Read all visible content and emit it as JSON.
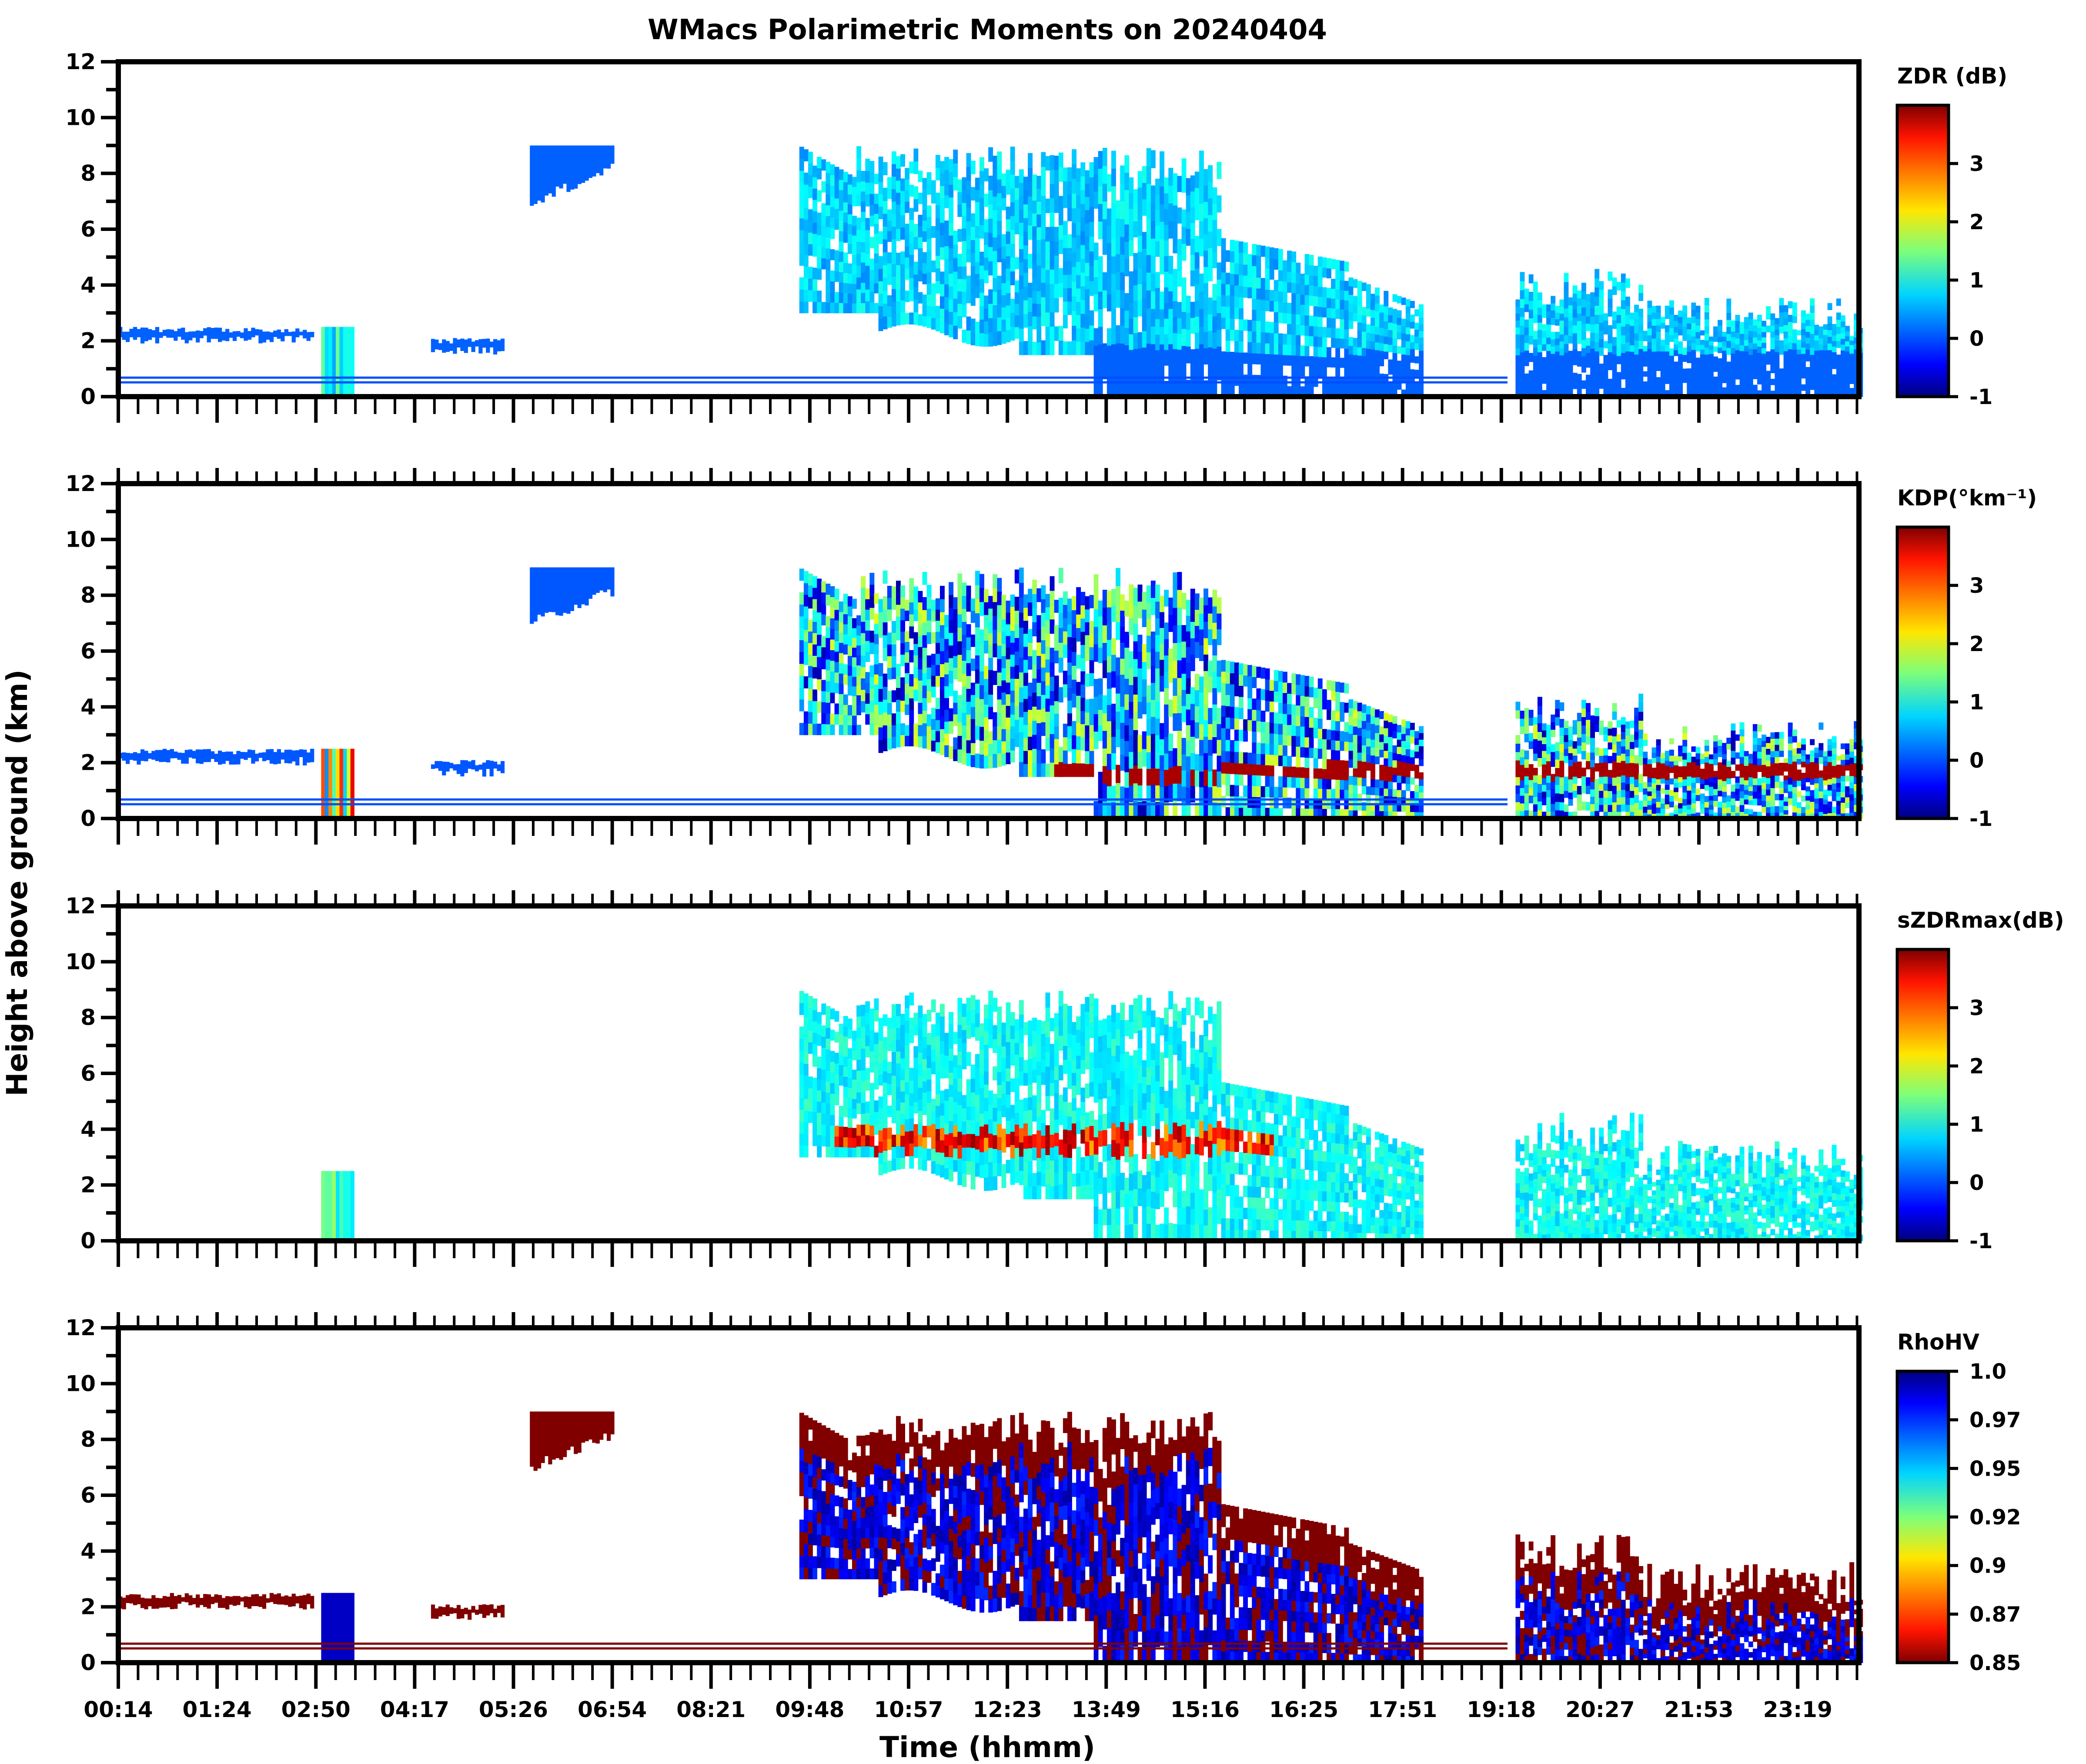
{
  "chart_data": {
    "type": "heatmap",
    "title": "WMacs Polarimetric Moments on 20240404",
    "xlabel": "Time (hhmm)",
    "ylabel": "Height above ground (km)",
    "x_tick_labels": [
      "00:14",
      "01:24",
      "02:50",
      "04:17",
      "05:26",
      "06:54",
      "08:21",
      "09:48",
      "10:57",
      "12:23",
      "13:49",
      "15:16",
      "16:25",
      "17:51",
      "19:18",
      "20:27",
      "21:53",
      "23:19"
    ],
    "y_tick_labels": [
      "0",
      "2",
      "4",
      "6",
      "8",
      "10",
      "12"
    ],
    "ylim": [
      0,
      12
    ],
    "xlim_hours": [
      0.23,
      24.0
    ],
    "grid": false,
    "panels": [
      {
        "name": "ZDR",
        "colorbar_label": "ZDR (dB)",
        "colormap": "jet",
        "clim": [
          -1,
          4
        ],
        "colorbar_ticks": [
          "3",
          "2",
          "1",
          "0",
          "-1"
        ],
        "colorbar_tick_values": [
          3,
          2,
          1,
          0,
          -1
        ],
        "description": "Mostly 0 to 0.5 dB (blue) echoes; high ZDR (2-4 dB) near 3.5 km around 10:30"
      },
      {
        "name": "KDP",
        "colorbar_label": "KDP(°km⁻¹)",
        "colormap": "jet",
        "clim": [
          -1,
          4
        ],
        "colorbar_ticks": [
          "3",
          "2",
          "1",
          "0",
          "-1"
        ],
        "colorbar_tick_values": [
          3,
          2,
          1,
          0,
          -1
        ],
        "description": "Noisy banded KDP with high values near melting layer (~1.7 km) after 19:18"
      },
      {
        "name": "sZDRmax",
        "colorbar_label": "sZDRmax(dB)",
        "colormap": "jet",
        "clim": [
          -1,
          4
        ],
        "colorbar_ticks": [
          "3",
          "2",
          "1",
          "0",
          "-1"
        ],
        "colorbar_tick_values": [
          3,
          2,
          1,
          0,
          -1
        ],
        "description": "Ice-phase region 1-1.5 dB with strong 3-4 dB band near 3.5 km between 10:00 and 16:00"
      },
      {
        "name": "RhoHV",
        "colorbar_label": "RhoHV",
        "colormap": "jet_r",
        "clim": [
          0.85,
          1.0
        ],
        "colorbar_ticks": [
          "1.0",
          "0.97",
          "0.95",
          "0.92",
          "0.9",
          "0.87",
          "0.85"
        ],
        "colorbar_tick_values": [
          1.0,
          0.97,
          0.95,
          0.92,
          0.9,
          0.87,
          0.85
        ],
        "description": "Low RhoHV (<0.85, dark red) in cloud edges, high RhoHV (0.97-1.0, blue) in precipitation core"
      }
    ],
    "echo_regions": [
      {
        "t_start": 0.23,
        "t_end": 2.9,
        "h_bottom": 1.9,
        "h_top": 2.5,
        "label": "low cloud layer"
      },
      {
        "t_start": 3.0,
        "t_end": 3.45,
        "h_bottom": 0.0,
        "h_top": 2.5,
        "label": "early precipitation column"
      },
      {
        "t_start": 4.5,
        "t_end": 5.5,
        "h_bottom": 1.5,
        "h_top": 2.1,
        "label": "low cloud layer 2"
      },
      {
        "t_start": 5.85,
        "t_end": 7.0,
        "h_bottom": 6.8,
        "h_top": 9.0,
        "label": "cirrus"
      },
      {
        "t_start": 9.5,
        "t_end": 15.25,
        "h_bottom": 0.0,
        "h_top": 9.0,
        "label": "main stratiform system"
      },
      {
        "t_start": 15.25,
        "t_end": 19.0,
        "h_bottom": 0.0,
        "h_top": 5.8,
        "label": "decaying system"
      },
      {
        "t_start": 19.25,
        "t_end": 24.0,
        "h_bottom": 0.0,
        "h_top": 5.0,
        "label": "convective showers"
      }
    ],
    "melting_layer_km": 1.6
  }
}
